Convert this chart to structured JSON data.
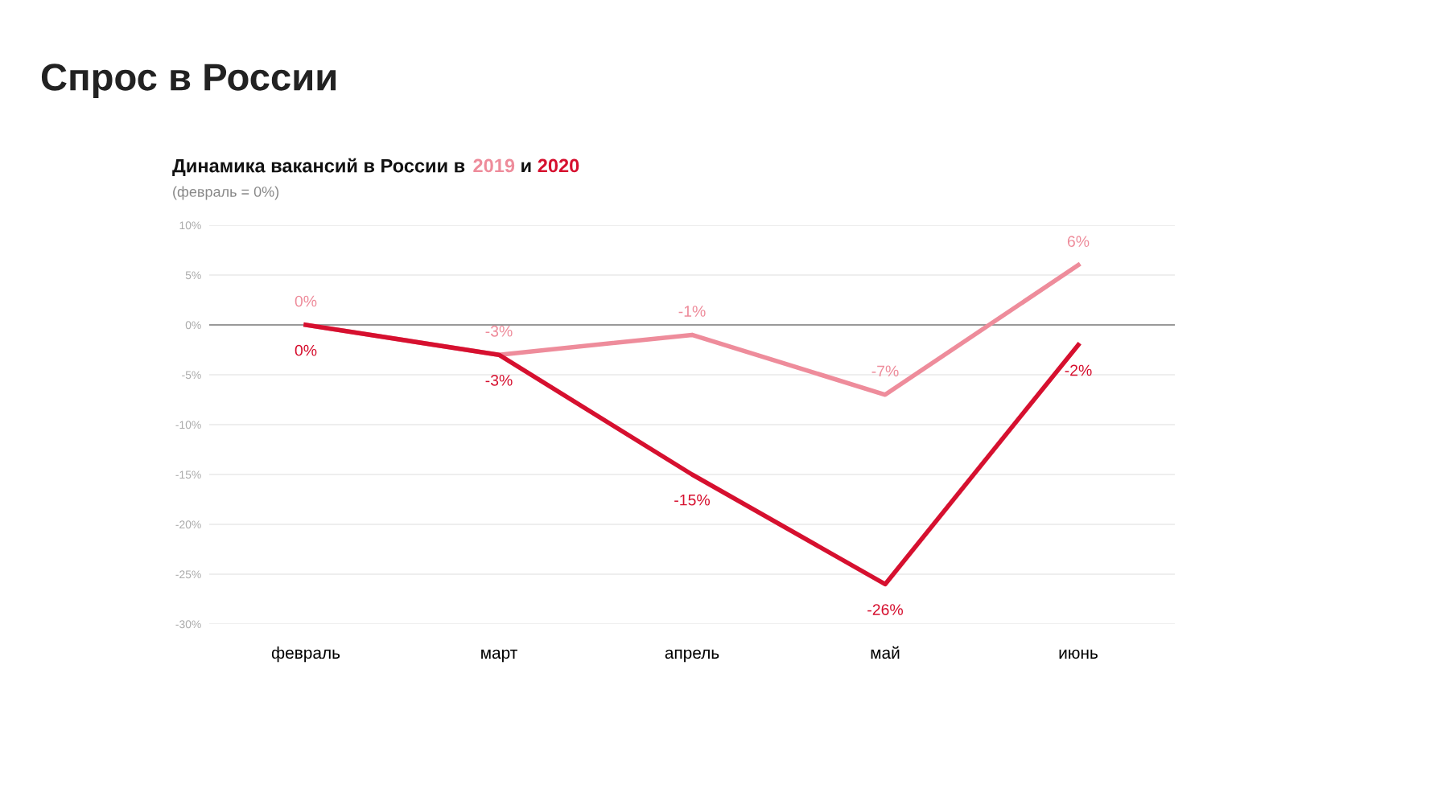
{
  "chart_data": {
    "type": "line",
    "title": "Спрос в России",
    "subtitle": "Динамика вакансий в России в",
    "annotations": [
      "и",
      "(февраль = 0%)"
    ],
    "categories": [
      "февраль",
      "март",
      "апрель",
      "май",
      "июнь"
    ],
    "series": [
      {
        "name": "2019",
        "color": "#ee8c9b",
        "values": [
          0,
          -3,
          -1,
          -7,
          6
        ],
        "value_labels": [
          "0%",
          "-3%",
          "-1%",
          "-7%",
          "6%"
        ]
      },
      {
        "name": "2020",
        "color": "#d6102f",
        "values": [
          0,
          -3,
          -15,
          -26,
          -2
        ],
        "value_labels": [
          "0%",
          "-3%",
          "-15%",
          "-26%",
          "-2%"
        ]
      }
    ],
    "ylim": [
      -30,
      10
    ],
    "yticks": [
      {
        "value": 10,
        "label": "10%"
      },
      {
        "value": 5,
        "label": "5%"
      },
      {
        "value": 0,
        "label": "0%"
      },
      {
        "value": -5,
        "label": "-5%"
      },
      {
        "value": -10,
        "label": "-10%"
      },
      {
        "value": -15,
        "label": "-15%"
      },
      {
        "value": -20,
        "label": "-20%"
      },
      {
        "value": -25,
        "label": "-25%"
      },
      {
        "value": -30,
        "label": "-30%"
      }
    ],
    "grid": "y",
    "legend": false,
    "marker": "none",
    "line_style": "solid",
    "ref_lines": [
      {
        "axis": "y",
        "value": 0,
        "color": "#999999"
      }
    ]
  }
}
